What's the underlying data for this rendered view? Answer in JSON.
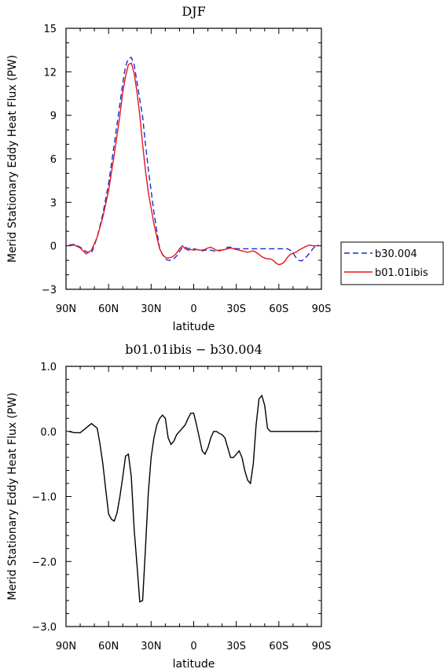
{
  "chart_data": [
    {
      "type": "line",
      "title": "DJF",
      "xlabel": "latitude",
      "ylabel": "Merid Stationary Eddy Heat Flux (PW)",
      "xlim": [
        -90,
        90
      ],
      "ylim": [
        -3,
        15
      ],
      "xticks": [
        -90,
        -60,
        -30,
        0,
        30,
        60,
        90
      ],
      "xtick_labels": [
        "90N",
        "60N",
        "30N",
        "0",
        "30S",
        "60S",
        "90S"
      ],
      "yticks": [
        -3,
        0,
        3,
        6,
        9,
        12,
        15
      ],
      "ytick_labels": [
        "−3",
        "0",
        "3",
        "6",
        "9",
        "12",
        "15"
      ],
      "legend": "outside-right",
      "series": [
        {
          "name": "b30.004",
          "color": "#1a2ccf",
          "dash": "dashed",
          "x": [
            -88,
            -84,
            -80,
            -76,
            -72,
            -68,
            -64,
            -60,
            -56,
            -52,
            -50,
            -48,
            -46,
            -44,
            -42,
            -40,
            -38,
            -36,
            -34,
            -32,
            -30,
            -28,
            -26,
            -24,
            -22,
            -20,
            -18,
            -16,
            -14,
            -12,
            -10,
            -8,
            -6,
            -4,
            -2,
            0,
            2,
            4,
            6,
            8,
            10,
            12,
            14,
            16,
            18,
            20,
            22,
            24,
            26,
            28,
            30,
            32,
            34,
            36,
            38,
            40,
            42,
            44,
            46,
            48,
            50,
            52,
            54,
            56,
            58,
            60,
            62,
            64,
            66,
            68,
            70,
            72,
            74,
            76,
            78,
            80,
            82,
            84,
            86,
            88
          ],
          "y": [
            0.05,
            0.1,
            -0.1,
            -0.4,
            -0.5,
            0.6,
            2.2,
            4.3,
            7.0,
            9.8,
            11.2,
            12.4,
            12.9,
            13.0,
            12.5,
            11.3,
            10.1,
            8.9,
            7.0,
            5.3,
            3.8,
            2.3,
            1.0,
            -0.2,
            -0.6,
            -0.9,
            -1.0,
            -1.0,
            -0.9,
            -0.7,
            -0.4,
            -0.1,
            -0.1,
            -0.2,
            -0.15,
            -0.2,
            -0.25,
            -0.3,
            -0.35,
            -0.3,
            -0.25,
            -0.3,
            -0.35,
            -0.4,
            -0.3,
            -0.3,
            -0.2,
            -0.1,
            -0.1,
            -0.15,
            -0.2,
            -0.2,
            -0.2,
            -0.2,
            -0.2,
            -0.2,
            -0.2,
            -0.2,
            -0.2,
            -0.2,
            -0.2,
            -0.2,
            -0.2,
            -0.2,
            -0.2,
            -0.2,
            -0.2,
            -0.2,
            -0.2,
            -0.3,
            -0.5,
            -0.8,
            -1.0,
            -1.05,
            -0.9,
            -0.7,
            -0.45,
            -0.2,
            0.0,
            0.05
          ]
        },
        {
          "name": "b01.01ibis",
          "color": "#e3151c",
          "dash": "solid",
          "x": [
            -88,
            -84,
            -80,
            -76,
            -72,
            -68,
            -64,
            -60,
            -56,
            -52,
            -50,
            -48,
            -46,
            -44,
            -42,
            -40,
            -38,
            -36,
            -34,
            -32,
            -30,
            -28,
            -26,
            -24,
            -22,
            -20,
            -18,
            -16,
            -14,
            -12,
            -10,
            -8,
            -6,
            -4,
            -2,
            0,
            2,
            4,
            6,
            8,
            10,
            12,
            14,
            16,
            18,
            20,
            22,
            24,
            26,
            28,
            30,
            32,
            34,
            36,
            38,
            40,
            42,
            44,
            46,
            48,
            50,
            52,
            54,
            56,
            58,
            60,
            62,
            64,
            66,
            68,
            70,
            72,
            74,
            76,
            78,
            80,
            82,
            84,
            86,
            88
          ],
          "y": [
            0.0,
            0.05,
            -0.15,
            -0.55,
            -0.3,
            0.6,
            2.0,
            3.8,
            6.3,
            9.0,
            10.6,
            11.7,
            12.5,
            12.6,
            11.9,
            10.6,
            9.0,
            7.0,
            5.2,
            3.7,
            2.6,
            1.5,
            0.6,
            -0.2,
            -0.6,
            -0.8,
            -0.85,
            -0.8,
            -0.7,
            -0.5,
            -0.2,
            0.0,
            -0.2,
            -0.3,
            -0.25,
            -0.3,
            -0.25,
            -0.3,
            -0.3,
            -0.25,
            -0.15,
            -0.1,
            -0.2,
            -0.3,
            -0.35,
            -0.3,
            -0.25,
            -0.2,
            -0.15,
            -0.2,
            -0.25,
            -0.3,
            -0.35,
            -0.4,
            -0.45,
            -0.4,
            -0.35,
            -0.45,
            -0.6,
            -0.75,
            -0.85,
            -0.9,
            -0.9,
            -1.0,
            -1.2,
            -1.3,
            -1.25,
            -1.1,
            -0.8,
            -0.6,
            -0.5,
            -0.45,
            -0.3,
            -0.2,
            -0.1,
            0.0,
            0.05,
            0.0,
            0.0,
            0.0
          ]
        }
      ]
    },
    {
      "type": "line",
      "title": "b01.01ibis − b30.004",
      "xlabel": "latitude",
      "ylabel": "Merid Stationary Eddy Heat Flux (PW)",
      "xlim": [
        -90,
        90
      ],
      "ylim": [
        -3,
        1
      ],
      "xticks": [
        -90,
        -60,
        -30,
        0,
        30,
        60,
        90
      ],
      "xtick_labels": [
        "90N",
        "60N",
        "30N",
        "0",
        "30S",
        "60S",
        "90S"
      ],
      "yticks": [
        -3,
        -2,
        -1,
        0,
        1
      ],
      "ytick_labels": [
        "−3.0",
        "−2.0",
        "−1.0",
        "0.0",
        "1.0"
      ],
      "series": [
        {
          "color": "#000000",
          "dash": "solid",
          "x": [
            -88,
            -84,
            -80,
            -76,
            -72,
            -68,
            -66,
            -64,
            -62,
            -60,
            -58,
            -56,
            -54,
            -52,
            -50,
            -48,
            -46,
            -44,
            -42,
            -40,
            -38,
            -36,
            -34,
            -32,
            -30,
            -28,
            -26,
            -24,
            -22,
            -20,
            -18,
            -16,
            -14,
            -12,
            -10,
            -8,
            -6,
            -4,
            -2,
            0,
            2,
            4,
            6,
            8,
            10,
            12,
            14,
            16,
            18,
            20,
            22,
            24,
            26,
            28,
            30,
            32,
            34,
            36,
            38,
            40,
            42,
            44,
            46,
            48,
            50,
            52,
            54,
            56,
            58,
            60,
            62,
            64,
            66,
            68,
            70,
            72,
            74,
            76,
            78,
            80,
            82,
            84,
            86,
            88
          ],
          "y": [
            0.0,
            -0.02,
            -0.02,
            0.05,
            0.12,
            0.05,
            -0.2,
            -0.5,
            -0.9,
            -1.27,
            -1.35,
            -1.38,
            -1.25,
            -1.0,
            -0.7,
            -0.38,
            -0.35,
            -0.7,
            -1.5,
            -2.05,
            -2.62,
            -2.6,
            -1.8,
            -0.95,
            -0.4,
            -0.1,
            0.1,
            0.2,
            0.25,
            0.2,
            -0.1,
            -0.2,
            -0.15,
            -0.05,
            0.0,
            0.05,
            0.1,
            0.2,
            0.28,
            0.28,
            0.1,
            -0.1,
            -0.3,
            -0.35,
            -0.25,
            -0.1,
            0.0,
            0.0,
            -0.03,
            -0.05,
            -0.1,
            -0.25,
            -0.4,
            -0.4,
            -0.35,
            -0.3,
            -0.4,
            -0.6,
            -0.75,
            -0.8,
            -0.5,
            0.1,
            0.5,
            0.55,
            0.4,
            0.05,
            0.0,
            0.0,
            0.0,
            0.0,
            0.0,
            0.0,
            0.0,
            0.0,
            0.0,
            0.0,
            0.0,
            0.0,
            0.0,
            0.0,
            0.0,
            0.0,
            0.0,
            0.0
          ]
        }
      ]
    }
  ]
}
